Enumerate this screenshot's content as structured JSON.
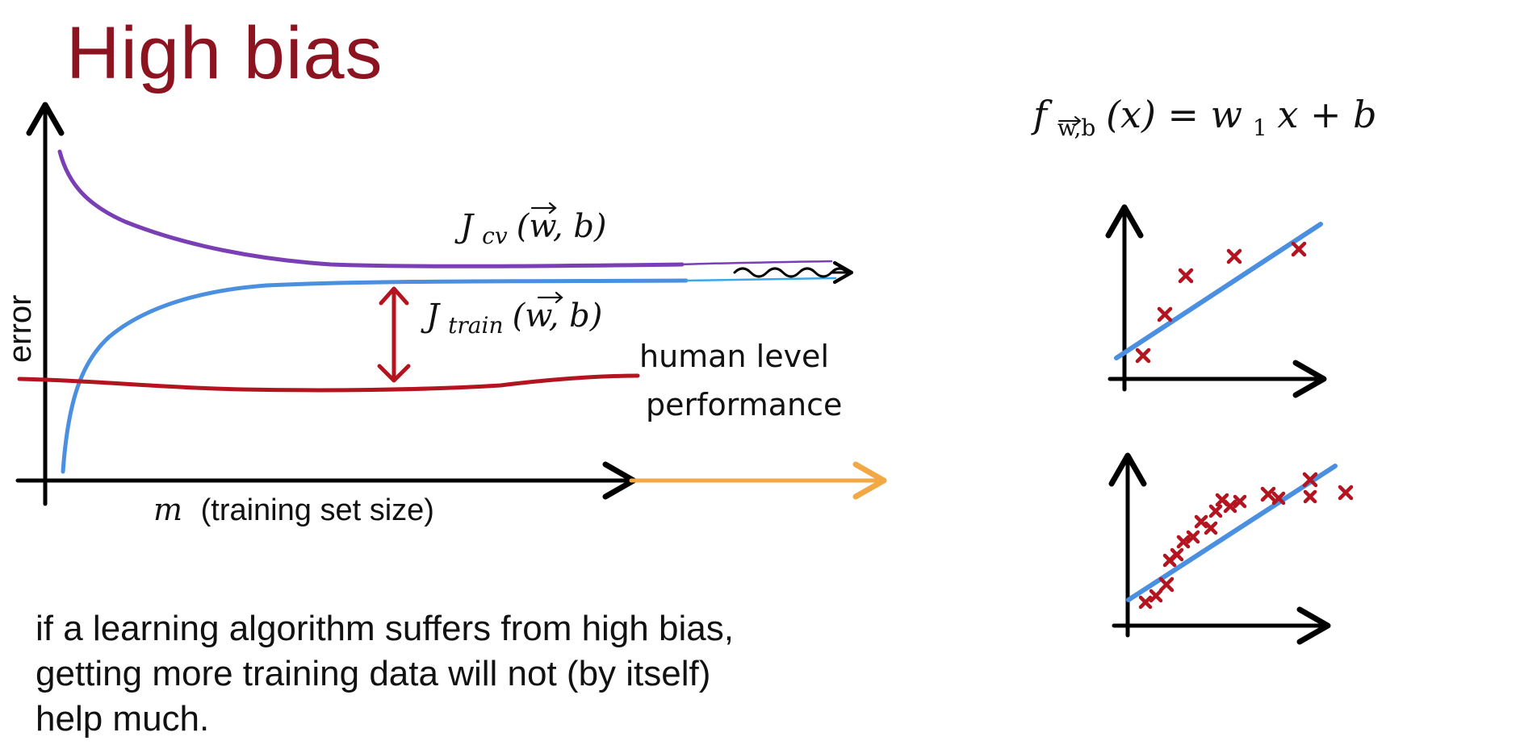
{
  "slide": {
    "title": "High bias",
    "note_lines": [
      "if a learning algorithm suffers from high bias,",
      "getting more training data will not (by itself)",
      "help much."
    ]
  },
  "learning_curve": {
    "y_axis_label": "error",
    "x_axis_label": "(training set size)",
    "x_axis_symbol": "m",
    "cv_label_symbol": "J",
    "cv_label_sub": "cv",
    "cv_label_args": "(w, b)",
    "train_label_symbol": "J",
    "train_label_sub": "train",
    "train_label_args": "(w, b)",
    "human_level_line1": "human level",
    "human_level_line2": "performance"
  },
  "model": {
    "function_symbol": "f",
    "function_sub": "w,b",
    "function_expr": "(x) = w",
    "function_expr_sub": "1",
    "function_expr_tail": "x + b"
  },
  "colors": {
    "title": "#8c1320",
    "cv_curve": "#7a3fb5",
    "train_curve": "#4a8fe0",
    "human_level": "#b3141f",
    "extension_arrow": "#f2a844",
    "data_points": "#b3141f",
    "fit_line": "#4a8fe0"
  }
}
